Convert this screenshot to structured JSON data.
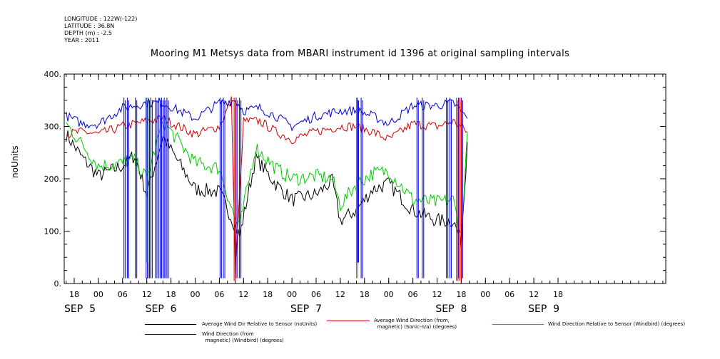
{
  "meta": {
    "longitude": "LONGITUDE : 122W(-122)",
    "latitude": "LATITUDE : 36.8N",
    "depth": "DEPTH (m) : -2.5",
    "year": "YEAR : 2011"
  },
  "chart_data": {
    "type": "line",
    "title": "Mooring M1 Metsys data from MBARI instrument id 1396 at original sampling intervals",
    "xlabel": "",
    "ylabel": "noUnits",
    "ylim": [
      0,
      400
    ],
    "yticks": [
      "0.",
      "100.",
      "200.",
      "300.",
      "400."
    ],
    "x_hour_labels": [
      "18",
      "00",
      "06",
      "12",
      "18",
      "00",
      "06",
      "12",
      "18",
      "00",
      "06",
      "12",
      "18",
      "00",
      "06",
      "12",
      "18",
      "00",
      "06",
      "12",
      "18"
    ],
    "x_day_labels": [
      "SEP  5",
      "SEP  6",
      "SEP  7",
      "SEP  8",
      "SEP  9"
    ],
    "x_start": "2011-09-05 16:00",
    "x_end": "2011-09-09 19:30",
    "grid": false,
    "legend_position": "bottom",
    "series": [
      {
        "name": "Average Wind Dir Relative to Sensor (noUnits)",
        "color": "#000000",
        "x": [
          "2011-09-05 16:00",
          "2011-09-05 20:00",
          "2011-09-06 00:00",
          "2011-09-06 06:00",
          "2011-09-06 09:00",
          "2011-09-06 12:00",
          "2011-09-06 16:00",
          "2011-09-06 20:00",
          "2011-09-07 00:00",
          "2011-09-07 06:00",
          "2011-09-07 10:00",
          "2011-09-07 11:00",
          "2011-09-07 15:00",
          "2011-09-07 20:00",
          "2011-09-08 00:00",
          "2011-09-08 06:00",
          "2011-09-08 10:00",
          "2011-09-08 12:00",
          "2011-09-08 16:00",
          "2011-09-08 20:00",
          "2011-09-09 00:00",
          "2011-09-09 06:00",
          "2011-09-09 12:00",
          "2011-09-09 16:00",
          "2011-09-09 18:00",
          "2011-09-09 19:30"
        ],
        "y": [
          285,
          240,
          205,
          225,
          245,
          170,
          280,
          230,
          180,
          175,
          110,
          90,
          240,
          190,
          160,
          170,
          195,
          120,
          140,
          180,
          190,
          140,
          120,
          120,
          80,
          270
        ]
      },
      {
        "name": "Average Wind Direction (from,\n  magnetic) (Sonic-n/a) (degrees)",
        "color": "#cc0000",
        "x": [
          "2011-09-05 16:00",
          "2011-09-05 20:00",
          "2011-09-06 00:00",
          "2011-09-06 06:00",
          "2011-09-06 12:00",
          "2011-09-06 16:00",
          "2011-09-06 20:00",
          "2011-09-07 00:00",
          "2011-09-07 06:00",
          "2011-09-07 09:00",
          "2011-09-07 10:00",
          "2011-09-07 12:00",
          "2011-09-07 16:00",
          "2011-09-07 20:00",
          "2011-09-08 00:00",
          "2011-09-08 06:00",
          "2011-09-08 12:00",
          "2011-09-08 16:00",
          "2011-09-08 20:00",
          "2011-09-09 00:00",
          "2011-09-09 06:00",
          "2011-09-09 12:00",
          "2011-09-09 16:00",
          "2011-09-09 19:30"
        ],
        "y": [
          285,
          290,
          285,
          300,
          310,
          315,
          300,
          285,
          300,
          350,
          20,
          310,
          310,
          290,
          275,
          290,
          300,
          300,
          290,
          275,
          305,
          300,
          310,
          290
        ]
      },
      {
        "name": "Wind Direction Relative to Sensor (Windbird) (degrees)",
        "color": "#00cc00",
        "x": [
          "2011-09-05 16:00",
          "2011-09-05 20:00",
          "2011-09-06 00:00",
          "2011-09-06 06:00",
          "2011-09-06 09:00",
          "2011-09-06 12:00",
          "2011-09-06 16:00",
          "2011-09-06 20:00",
          "2011-09-07 00:00",
          "2011-09-07 06:00",
          "2011-09-07 10:00",
          "2011-09-07 11:00",
          "2011-09-07 15:00",
          "2011-09-07 20:00",
          "2011-09-08 00:00",
          "2011-09-08 06:00",
          "2011-09-08 10:00",
          "2011-09-08 12:00",
          "2011-09-08 16:00",
          "2011-09-08 20:00",
          "2011-09-09 00:00",
          "2011-09-09 06:00",
          "2011-09-09 12:00",
          "2011-09-09 16:00",
          "2011-09-09 18:00",
          "2011-09-09 19:30"
        ],
        "y": [
          305,
          265,
          225,
          230,
          235,
          200,
          310,
          270,
          230,
          220,
          120,
          110,
          260,
          220,
          200,
          205,
          200,
          150,
          190,
          210,
          215,
          160,
          155,
          160,
          90,
          290
        ]
      },
      {
        "name": "Wind Direction (from\n  magnetic) (Windbird) (degrees)",
        "color": "#0000cc",
        "x": [
          "2011-09-05 16:00",
          "2011-09-05 20:00",
          "2011-09-06 00:00",
          "2011-09-06 06:00",
          "2011-09-06 12:00",
          "2011-09-06 16:00",
          "2011-09-06 20:00",
          "2011-09-07 00:00",
          "2011-09-07 06:00",
          "2011-09-07 10:00",
          "2011-09-07 12:00",
          "2011-09-07 16:00",
          "2011-09-07 20:00",
          "2011-09-08 00:00",
          "2011-09-08 06:00",
          "2011-09-08 12:00",
          "2011-09-08 16:00",
          "2011-09-08 20:00",
          "2011-09-09 00:00",
          "2011-09-09 06:00",
          "2011-09-09 12:00",
          "2011-09-09 16:00",
          "2011-09-09 19:30"
        ],
        "y": [
          320,
          305,
          305,
          335,
          345,
          345,
          330,
          315,
          345,
          350,
          330,
          335,
          320,
          300,
          320,
          330,
          330,
          320,
          305,
          340,
          340,
          345,
          315
        ]
      }
    ],
    "dropouts": [
      {
        "series": 3,
        "x": "2011-09-06 06:20",
        "y": 10
      },
      {
        "series": 3,
        "x": "2011-09-06 07:10",
        "y": 10
      },
      {
        "series": 3,
        "x": "2011-09-06 09:10",
        "y": 10
      },
      {
        "series": 3,
        "x": "2011-09-06 11:50",
        "y": 10
      },
      {
        "series": 3,
        "x": "2011-09-06 12:20",
        "y": 10
      },
      {
        "series": 3,
        "x": "2011-09-06 13:00",
        "y": 10
      },
      {
        "series": 3,
        "x": "2011-09-06 14:10",
        "y": 10
      },
      {
        "series": 3,
        "x": "2011-09-06 15:00",
        "y": 10
      },
      {
        "series": 3,
        "x": "2011-09-06 15:40",
        "y": 10
      },
      {
        "series": 3,
        "x": "2011-09-06 16:20",
        "y": 10
      },
      {
        "series": 3,
        "x": "2011-09-06 17:00",
        "y": 10
      },
      {
        "series": 3,
        "x": "2011-09-07 06:10",
        "y": 10
      },
      {
        "series": 3,
        "x": "2011-09-07 07:00",
        "y": 10
      },
      {
        "series": 3,
        "x": "2011-09-07 10:10",
        "y": 10
      },
      {
        "series": 3,
        "x": "2011-09-07 11:00",
        "y": 10
      },
      {
        "series": 3,
        "x": "2011-09-08 16:10",
        "y": 40
      },
      {
        "series": 3,
        "x": "2011-09-08 17:10",
        "y": 10
      },
      {
        "series": 3,
        "x": "2011-09-09 07:00",
        "y": 10
      },
      {
        "series": 3,
        "x": "2011-09-09 08:20",
        "y": 10
      },
      {
        "series": 3,
        "x": "2011-09-09 14:20",
        "y": 10
      },
      {
        "series": 3,
        "x": "2011-09-09 15:10",
        "y": 10
      },
      {
        "series": 3,
        "x": "2011-09-09 17:20",
        "y": 10
      },
      {
        "series": 3,
        "x": "2011-09-09 18:00",
        "y": 10
      },
      {
        "series": 1,
        "x": "2011-09-07 09:40",
        "y": 5
      },
      {
        "series": 1,
        "x": "2011-09-09 16:50",
        "y": 5
      },
      {
        "series": 1,
        "x": "2011-09-09 17:40",
        "y": 5
      },
      {
        "series": 2,
        "x": "2011-09-06 12:00",
        "y": 40
      },
      {
        "series": 2,
        "x": "2011-09-08 16:00",
        "y": 10
      }
    ]
  }
}
